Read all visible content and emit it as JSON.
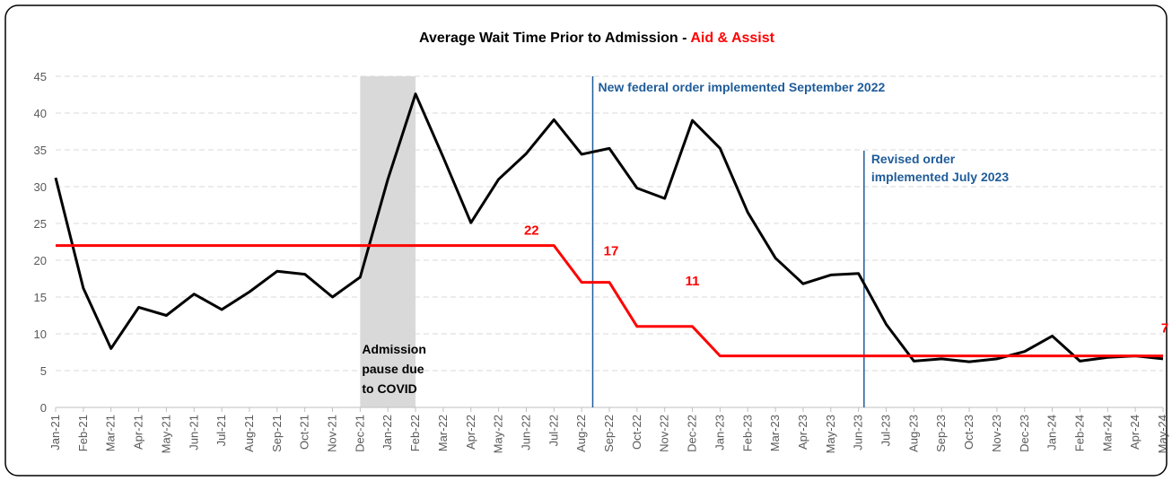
{
  "chart_data": {
    "type": "line",
    "title": "Average Wait Time Prior to Admission - ",
    "title_highlight": "Aid & Assist",
    "categories": [
      "Jan-21",
      "Feb-21",
      "Mar-21",
      "Apr-21",
      "May-21",
      "Jun-21",
      "Jul-21",
      "Aug-21",
      "Sep-21",
      "Oct-21",
      "Nov-21",
      "Dec-21",
      "Jan-22",
      "Feb-22",
      "Mar-22",
      "Apr-22",
      "May-22",
      "Jun-22",
      "Jul-22",
      "Aug-22",
      "Sep-22",
      "Oct-22",
      "Nov-22",
      "Dec-22",
      "Jan-23",
      "Feb-23",
      "Mar-23",
      "Apr-23",
      "May-23",
      "Jun-23",
      "Jul-23",
      "Aug-23",
      "Sep-23",
      "Oct-23",
      "Nov-23",
      "Dec-23",
      "Jan-24",
      "Feb-24",
      "Mar-24",
      "Apr-24",
      "May-24"
    ],
    "series": [
      {
        "color": "#000000",
        "values": [
          31.2,
          16.2,
          8.0,
          13.6,
          12.5,
          15.4,
          13.3,
          15.7,
          18.5,
          18.1,
          15.0,
          17.7,
          31.0,
          42.6,
          34.0,
          25.1,
          31.0,
          34.5,
          39.1,
          34.4,
          35.2,
          29.8,
          28.4,
          39.0,
          35.2,
          26.5,
          20.3,
          16.8,
          18.0,
          18.2,
          11.3,
          6.3,
          6.6,
          6.2,
          6.6,
          7.6,
          9.7,
          6.3,
          6.8,
          7.0,
          6.6
        ]
      },
      {
        "color": "#ff0000",
        "values": [
          22,
          22,
          22,
          22,
          22,
          22,
          22,
          22,
          22,
          22,
          22,
          22,
          22,
          22,
          22,
          22,
          22,
          22,
          22,
          17,
          17,
          11,
          11,
          11,
          7,
          7,
          7,
          7,
          7,
          7,
          7,
          7,
          7,
          7,
          7,
          7,
          7,
          7,
          7,
          7,
          7
        ]
      }
    ],
    "ylim": [
      0,
      45
    ],
    "yticks": [
      0,
      5,
      10,
      15,
      20,
      25,
      30,
      35,
      40,
      45
    ],
    "grid": true,
    "annotations": {
      "covid": [
        "Admission",
        "pause due",
        "to COVID"
      ],
      "federal": "New federal order implemented September 2022",
      "revised": [
        "Revised order",
        "implemented July 2023"
      ]
    }
  }
}
